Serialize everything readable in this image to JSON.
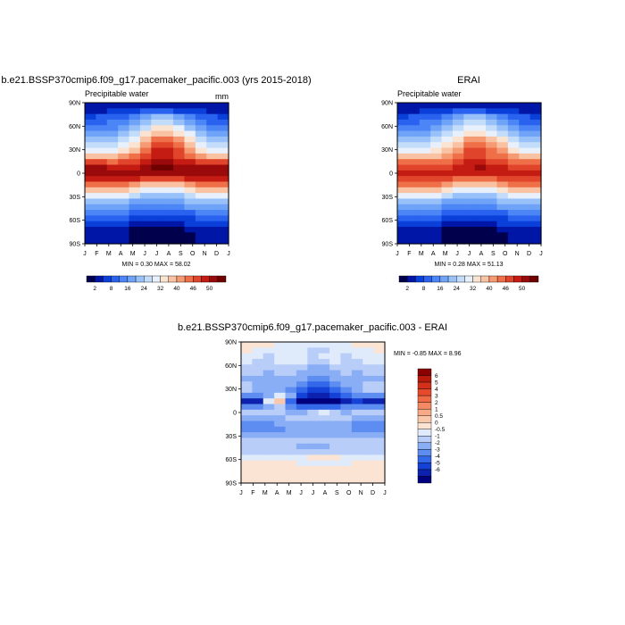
{
  "chart_data": [
    {
      "type": "heatmap",
      "title": "b.e21.BSSP370cmip6.f09_g17.pacemaker_pacific.003 (yrs 2015-2018)",
      "subtitle_left": "Precipitable water",
      "subtitle_right": "mm",
      "x_ticks": [
        "J",
        "F",
        "M",
        "A",
        "M",
        "J",
        "J",
        "A",
        "S",
        "O",
        "N",
        "D",
        "J"
      ],
      "y_ticks": [
        "90N",
        "60N",
        "30N",
        "0",
        "30S",
        "60S",
        "90S"
      ],
      "stats": "MIN =   0.30 MAX =  58.02",
      "colorbar_labels": [
        "2",
        "8",
        "16",
        "24",
        "32",
        "40",
        "46",
        "50"
      ],
      "colorbar_colors": [
        "#00004c",
        "#0016a6",
        "#0a3fd9",
        "#2a62f0",
        "#4b85f6",
        "#6fa3f8",
        "#98c0f9",
        "#c2dcfa",
        "#e8f0fb",
        "#fbe3d1",
        "#f9c2a3",
        "#f59a72",
        "#ef6f48",
        "#e0452b",
        "#c41c12",
        "#9a0a0a",
        "#6e0000"
      ],
      "values": [
        [
          1,
          1,
          1,
          1,
          1,
          1,
          1,
          1,
          1,
          1,
          1,
          1,
          1
        ],
        [
          1,
          1,
          2,
          2,
          2,
          3,
          3,
          3,
          2,
          2,
          2,
          1,
          1
        ],
        [
          2,
          3,
          3,
          3,
          4,
          5,
          6,
          6,
          5,
          4,
          3,
          3,
          2
        ],
        [
          3,
          3,
          4,
          4,
          5,
          6,
          7,
          7,
          6,
          5,
          4,
          3,
          3
        ],
        [
          4,
          4,
          4,
          5,
          6,
          7,
          9,
          9,
          8,
          6,
          5,
          4,
          4
        ],
        [
          5,
          5,
          5,
          6,
          7,
          9,
          10,
          10,
          9,
          8,
          6,
          5,
          5
        ],
        [
          6,
          6,
          6,
          7,
          8,
          10,
          12,
          12,
          11,
          9,
          7,
          6,
          6
        ],
        [
          7,
          7,
          7,
          8,
          9,
          11,
          13,
          13,
          12,
          10,
          8,
          7,
          7
        ],
        [
          8,
          8,
          8,
          9,
          10,
          12,
          14,
          14,
          13,
          11,
          9,
          8,
          8
        ],
        [
          10,
          10,
          10,
          11,
          12,
          13,
          14,
          14,
          13,
          12,
          11,
          10,
          10
        ],
        [
          13,
          13,
          12,
          13,
          13,
          14,
          15,
          15,
          14,
          14,
          13,
          13,
          13
        ],
        [
          15,
          15,
          14,
          14,
          14,
          15,
          16,
          16,
          15,
          15,
          15,
          15,
          15
        ],
        [
          15,
          15,
          15,
          15,
          15,
          15,
          15,
          15,
          15,
          15,
          15,
          15,
          15
        ],
        [
          14,
          14,
          14,
          14,
          14,
          13,
          13,
          13,
          13,
          14,
          14,
          14,
          14
        ],
        [
          12,
          12,
          12,
          12,
          11,
          10,
          10,
          10,
          10,
          11,
          12,
          12,
          12
        ],
        [
          10,
          10,
          10,
          10,
          9,
          8,
          8,
          8,
          8,
          9,
          10,
          10,
          10
        ],
        [
          8,
          8,
          8,
          8,
          7,
          6,
          6,
          6,
          6,
          7,
          8,
          8,
          8
        ],
        [
          6,
          6,
          6,
          6,
          5,
          5,
          5,
          5,
          5,
          6,
          6,
          6,
          6
        ],
        [
          5,
          5,
          5,
          5,
          4,
          4,
          4,
          4,
          4,
          5,
          5,
          5,
          5
        ],
        [
          4,
          4,
          4,
          4,
          3,
          3,
          3,
          3,
          3,
          3,
          4,
          4,
          4
        ],
        [
          3,
          3,
          3,
          3,
          2,
          2,
          2,
          2,
          2,
          2,
          3,
          3,
          3
        ],
        [
          2,
          2,
          2,
          2,
          1,
          1,
          1,
          1,
          1,
          2,
          2,
          2,
          2
        ],
        [
          1,
          1,
          1,
          1,
          0,
          0,
          0,
          0,
          0,
          1,
          1,
          1,
          1
        ],
        [
          1,
          1,
          1,
          1,
          0,
          0,
          0,
          0,
          0,
          0,
          1,
          1,
          1
        ],
        [
          1,
          1,
          1,
          1,
          0,
          0,
          0,
          0,
          0,
          0,
          1,
          1,
          1
        ]
      ]
    },
    {
      "type": "heatmap",
      "title": "ERAI",
      "subtitle_left": "Precipitable water",
      "subtitle_right": "",
      "x_ticks": [
        "J",
        "F",
        "M",
        "A",
        "M",
        "J",
        "J",
        "A",
        "S",
        "O",
        "N",
        "D",
        "J"
      ],
      "y_ticks": [
        "90N",
        "60N",
        "30N",
        "0",
        "30S",
        "60S",
        "90S"
      ],
      "stats": "MIN =   0.28 MAX =  51.13",
      "colorbar_labels": [
        "2",
        "8",
        "16",
        "24",
        "32",
        "40",
        "46",
        "50"
      ],
      "colorbar_colors": [
        "#00004c",
        "#0016a6",
        "#0a3fd9",
        "#2a62f0",
        "#4b85f6",
        "#6fa3f8",
        "#98c0f9",
        "#c2dcfa",
        "#e8f0fb",
        "#fbe3d1",
        "#f9c2a3",
        "#f59a72",
        "#ef6f48",
        "#e0452b",
        "#c41c12",
        "#9a0a0a",
        "#6e0000"
      ],
      "values": [
        [
          1,
          1,
          1,
          1,
          1,
          1,
          1,
          1,
          1,
          1,
          1,
          1,
          1
        ],
        [
          1,
          1,
          2,
          2,
          2,
          3,
          3,
          3,
          2,
          2,
          2,
          1,
          1
        ],
        [
          2,
          3,
          3,
          3,
          4,
          5,
          6,
          6,
          5,
          4,
          3,
          3,
          2
        ],
        [
          3,
          3,
          4,
          4,
          5,
          6,
          7,
          7,
          6,
          5,
          4,
          3,
          3
        ],
        [
          4,
          4,
          4,
          5,
          6,
          7,
          8,
          8,
          7,
          6,
          5,
          4,
          4
        ],
        [
          5,
          5,
          5,
          6,
          7,
          8,
          9,
          9,
          8,
          7,
          6,
          5,
          5
        ],
        [
          6,
          6,
          6,
          7,
          8,
          9,
          11,
          11,
          10,
          9,
          7,
          6,
          6
        ],
        [
          7,
          7,
          7,
          8,
          9,
          10,
          12,
          12,
          11,
          10,
          8,
          7,
          7
        ],
        [
          8,
          8,
          8,
          9,
          10,
          11,
          13,
          13,
          12,
          11,
          9,
          8,
          8
        ],
        [
          10,
          10,
          10,
          10,
          11,
          12,
          13,
          13,
          12,
          12,
          11,
          10,
          10
        ],
        [
          12,
          12,
          12,
          12,
          12,
          13,
          14,
          14,
          13,
          13,
          12,
          12,
          12
        ],
        [
          13,
          13,
          13,
          13,
          13,
          14,
          14,
          15,
          14,
          14,
          13,
          13,
          13
        ],
        [
          14,
          14,
          14,
          14,
          14,
          14,
          14,
          14,
          14,
          14,
          14,
          14,
          14
        ],
        [
          13,
          13,
          13,
          13,
          13,
          12,
          12,
          12,
          12,
          13,
          13,
          13,
          13
        ],
        [
          12,
          12,
          12,
          12,
          11,
          10,
          10,
          10,
          10,
          11,
          12,
          12,
          12
        ],
        [
          10,
          10,
          10,
          10,
          9,
          8,
          8,
          8,
          8,
          9,
          10,
          10,
          10
        ],
        [
          8,
          8,
          8,
          8,
          7,
          6,
          6,
          6,
          6,
          7,
          8,
          8,
          8
        ],
        [
          6,
          6,
          6,
          6,
          5,
          5,
          5,
          5,
          5,
          6,
          6,
          6,
          6
        ],
        [
          5,
          5,
          5,
          5,
          4,
          4,
          4,
          4,
          4,
          5,
          5,
          5,
          5
        ],
        [
          4,
          4,
          4,
          4,
          3,
          3,
          3,
          3,
          3,
          3,
          4,
          4,
          4
        ],
        [
          3,
          3,
          3,
          3,
          2,
          2,
          2,
          2,
          2,
          2,
          3,
          3,
          3
        ],
        [
          2,
          2,
          2,
          2,
          1,
          1,
          1,
          1,
          1,
          2,
          2,
          2,
          2
        ],
        [
          1,
          1,
          1,
          1,
          0,
          0,
          0,
          0,
          0,
          1,
          1,
          1,
          1
        ],
        [
          1,
          1,
          1,
          1,
          0,
          0,
          0,
          0,
          0,
          0,
          1,
          1,
          1
        ],
        [
          1,
          1,
          1,
          1,
          0,
          0,
          0,
          0,
          0,
          0,
          1,
          1,
          1
        ]
      ]
    },
    {
      "type": "heatmap",
      "title": "b.e21.BSSP370cmip6.f09_g17.pacemaker_pacific.003 - ERAI",
      "subtitle_left": "",
      "subtitle_right": "",
      "x_ticks": [
        "J",
        "F",
        "M",
        "A",
        "M",
        "J",
        "J",
        "A",
        "S",
        "O",
        "N",
        "D",
        "J"
      ],
      "y_ticks": [
        "90N",
        "60N",
        "30N",
        "0",
        "30S",
        "60S",
        "90S"
      ],
      "stats": "MIN =  -0.85 MAX =   8.96",
      "colorbar_labels": [
        "6",
        "5",
        "4",
        "3",
        "2",
        "1",
        "0.5",
        "0",
        "-0.5",
        "-1",
        "-2",
        "-3",
        "-4",
        "-5",
        "-6"
      ],
      "colorbar_colors": [
        "#8b0000",
        "#b81a0c",
        "#d42f1a",
        "#e6492b",
        "#ef6a45",
        "#f48a63",
        "#f7aa85",
        "#f9c8aa",
        "#fbe4d3",
        "#dfeafb",
        "#b8cdf8",
        "#8aaef5",
        "#5d8df1",
        "#3468ea",
        "#1442d6",
        "#0c22ae",
        "#00007f"
      ],
      "values": [
        [
          8,
          8,
          8,
          9,
          9,
          9,
          9,
          9,
          9,
          9,
          8,
          8,
          8
        ],
        [
          8,
          9,
          9,
          9,
          9,
          9,
          10,
          10,
          9,
          9,
          9,
          9,
          8
        ],
        [
          9,
          9,
          10,
          9,
          9,
          9,
          10,
          9,
          9,
          10,
          9,
          9,
          9
        ],
        [
          9,
          10,
          10,
          9,
          9,
          9,
          10,
          10,
          9,
          10,
          10,
          9,
          9
        ],
        [
          10,
          10,
          10,
          10,
          10,
          10,
          11,
          11,
          10,
          10,
          10,
          10,
          10
        ],
        [
          10,
          10,
          11,
          10,
          10,
          11,
          11,
          11,
          11,
          10,
          11,
          10,
          10
        ],
        [
          11,
          11,
          11,
          11,
          11,
          11,
          12,
          12,
          11,
          11,
          11,
          11,
          11
        ],
        [
          10,
          11,
          11,
          11,
          11,
          12,
          13,
          13,
          12,
          11,
          11,
          10,
          10
        ],
        [
          10,
          11,
          11,
          11,
          12,
          13,
          14,
          14,
          13,
          12,
          11,
          10,
          10
        ],
        [
          12,
          12,
          11,
          9,
          11,
          14,
          15,
          15,
          14,
          13,
          12,
          12,
          12
        ],
        [
          15,
          15,
          9,
          7,
          13,
          16,
          16,
          16,
          16,
          15,
          14,
          15,
          15
        ],
        [
          12,
          12,
          11,
          10,
          12,
          13,
          13,
          13,
          13,
          12,
          12,
          12,
          12
        ],
        [
          10,
          10,
          10,
          10,
          11,
          11,
          10,
          9,
          10,
          11,
          10,
          10,
          10
        ],
        [
          11,
          11,
          11,
          11,
          10,
          10,
          10,
          10,
          10,
          10,
          11,
          11,
          11
        ],
        [
          12,
          12,
          12,
          11,
          11,
          11,
          11,
          11,
          11,
          11,
          12,
          12,
          12
        ],
        [
          12,
          12,
          12,
          12,
          11,
          11,
          11,
          11,
          11,
          11,
          12,
          12,
          12
        ],
        [
          11,
          11,
          11,
          11,
          11,
          11,
          11,
          11,
          11,
          11,
          11,
          11,
          11
        ],
        [
          10,
          10,
          10,
          10,
          10,
          10,
          10,
          10,
          10,
          10,
          10,
          10,
          10
        ],
        [
          10,
          10,
          10,
          10,
          10,
          11,
          11,
          11,
          10,
          10,
          10,
          10,
          10
        ],
        [
          10,
          10,
          10,
          10,
          10,
          10,
          10,
          10,
          10,
          10,
          10,
          10,
          10
        ],
        [
          9,
          9,
          9,
          9,
          9,
          9,
          8,
          8,
          8,
          9,
          9,
          9,
          9
        ],
        [
          8,
          8,
          8,
          8,
          8,
          9,
          9,
          9,
          9,
          9,
          8,
          8,
          8
        ],
        [
          8,
          8,
          8,
          8,
          8,
          8,
          8,
          8,
          8,
          8,
          8,
          8,
          8
        ],
        [
          8,
          8,
          8,
          8,
          8,
          8,
          8,
          8,
          8,
          8,
          8,
          8,
          8
        ],
        [
          8,
          8,
          8,
          8,
          8,
          8,
          8,
          8,
          8,
          8,
          8,
          8,
          8
        ]
      ]
    }
  ]
}
